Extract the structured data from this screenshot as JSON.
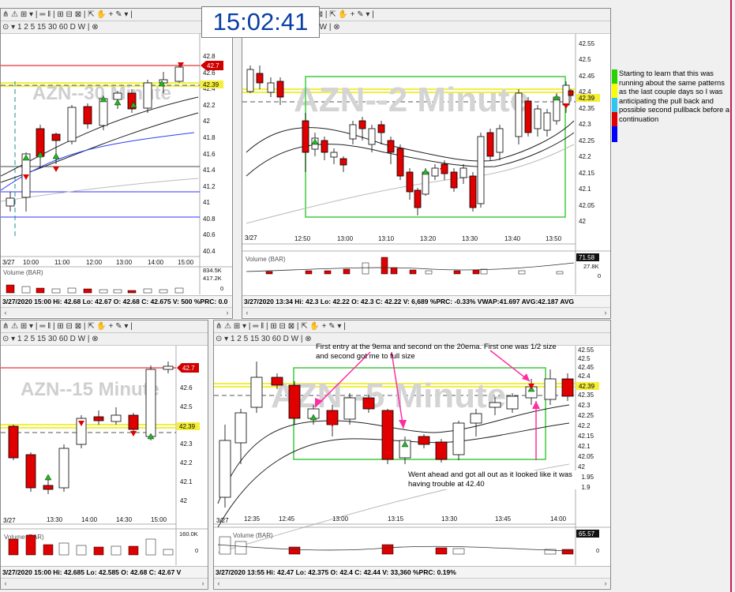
{
  "clock": "15:02:41",
  "toolbar_text": "⋔ ⚠ ⊞ ▾ | ═ ‖ | ⊞ ⊟ ⊠ | ⇱ ✋ + ✎ ▾ |",
  "interval_bar": "⊙ ▾  1  2  5  15 30 60  D  W | ⊗",
  "side_note": "Starting to learn that this was running about the same patterns as the last couple days so I was anticipating the pull back and possible second pullback before a continuation",
  "side_colors": [
    "#27d200",
    "#f7ff00",
    "#2ec6f2",
    "#e00000",
    "#0000ff"
  ],
  "windows": {
    "w30": {
      "title": "AZN--30 Minute",
      "price_axis": [
        "42.8",
        "42.6",
        "42.4",
        "42.2",
        "42",
        "41.8",
        "41.6",
        "41.4",
        "41.2",
        "41",
        "40.8",
        "40.6",
        "40.4"
      ],
      "last_flag": "42.7",
      "yellow_flag": "42.39",
      "date_tag": "3/27",
      "time_axis": [
        "10:00",
        "11:00",
        "12:00",
        "13:00",
        "14:00",
        "15:00"
      ],
      "volume_label": "Volume (BAR)",
      "volume_axis": [
        "834.5K",
        "417.2K",
        "0"
      ],
      "status": "3/27/2020 15:00  Hi: 42.68  Lo: 42.67  O: 42.68  C: 42.675  V: 500 %PRC: 0.0"
    },
    "w2": {
      "title": "AZN--2 Minute",
      "price_axis": [
        "42.55",
        "42.5",
        "42.45",
        "42.4",
        "42.35",
        "42.3",
        "42.25",
        "42.2",
        "42.15",
        "42.1",
        "42.05",
        "42"
      ],
      "yellow_flag": "42.39",
      "date_tag": "3/27",
      "time_axis": [
        "12:50",
        "13:00",
        "13:10",
        "13:20",
        "13:30",
        "13:40",
        "13:50"
      ],
      "volume_label": "Volume (BAR)",
      "volume_axis": [
        "71.58",
        "27.8K",
        "0"
      ],
      "status": "3/27/2020 13:34  Hi: 42.3  Lo: 42.22  O: 42.3  C: 42.22  V: 6,689 %PRC: -0.33%  VWAP:41.697  AVG:42.187  AVG"
    },
    "w15": {
      "title": "AZN--15 Minute",
      "price_axis": [
        "42.6",
        "42.5",
        "42.3",
        "42.2",
        "42.1",
        "42"
      ],
      "last_flag": "42.7",
      "yellow_flag": "42.39",
      "date_tag": "3/27",
      "time_axis": [
        "13:30",
        "14:00",
        "14:30",
        "15:00"
      ],
      "volume_label": "Volume (BAR)",
      "volume_axis": [
        "160.0K",
        "0"
      ],
      "status": "3/27/2020 15:00  Hi: 42.685  Lo: 42.585  O: 42.68  C: 42.67  V"
    },
    "w5": {
      "title": "AZN--5 Minute",
      "price_axis": [
        "42.55",
        "42.5",
        "42.45",
        "42.4",
        "42.35",
        "42.3",
        "42.25",
        "42.2",
        "42.15",
        "42.1",
        "42.05",
        "42",
        "41.95",
        "41.9"
      ],
      "yellow_flag": "42.39",
      "date_tag": "3/27",
      "time_axis": [
        "12:35",
        "12:45",
        "13:00",
        "13:15",
        "13:30",
        "13:45",
        "14:00"
      ],
      "volume_label": "Volume (BAR)",
      "volume_axis": [
        "65.57",
        "0"
      ],
      "status": "3/27/2020 13:55  Hi: 42.47  Lo: 42.375  O: 42.4  C: 42.44  V: 33,360 %PRC: 0.19%",
      "annotation_top": "First entry at the 9ema and second on the 20ema. First one was 1/2 size and second got me to full size",
      "annotation_bottom": "Went ahead and got all out as it looked like it was having trouble at 42.40"
    }
  }
}
